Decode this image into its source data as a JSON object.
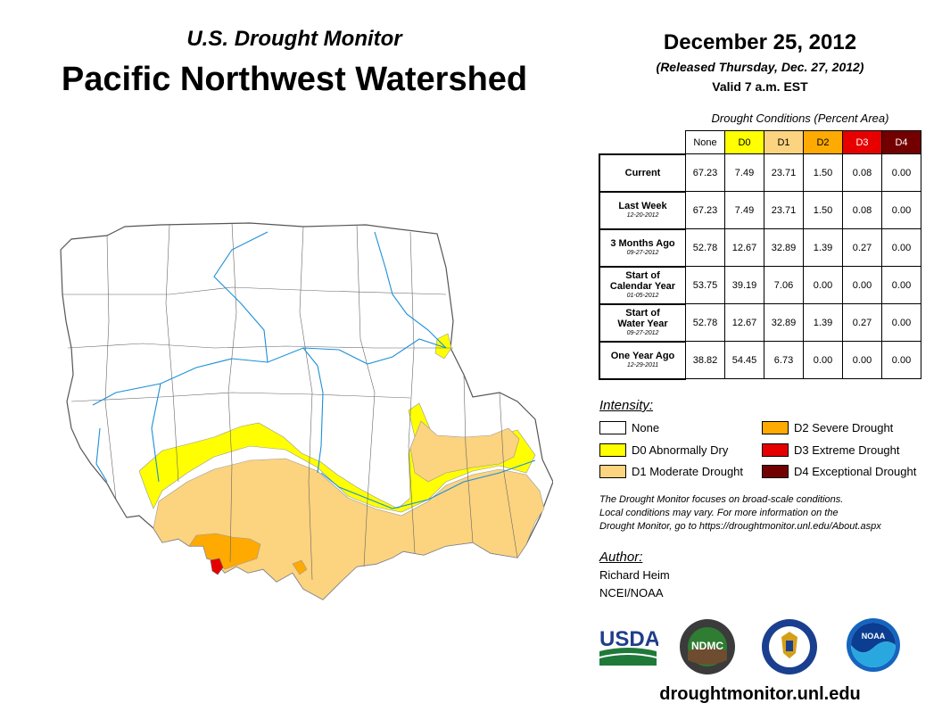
{
  "header": {
    "subtitle": "U.S. Drought Monitor",
    "title": "Pacific Northwest Watershed",
    "date": "December 25, 2012",
    "released": "(Released Thursday, Dec. 27, 2012)",
    "valid": "Valid 7 a.m. EST"
  },
  "table": {
    "caption": "Drought Conditions (Percent Area)",
    "columns": [
      "None",
      "D0",
      "D1",
      "D2",
      "D3",
      "D4"
    ],
    "rows": [
      {
        "label": "Current",
        "label2": "",
        "date": "",
        "values": [
          "67.23",
          "7.49",
          "23.71",
          "1.50",
          "0.08",
          "0.00"
        ]
      },
      {
        "label": "Last Week",
        "label2": "",
        "date": "12-20-2012",
        "values": [
          "67.23",
          "7.49",
          "23.71",
          "1.50",
          "0.08",
          "0.00"
        ]
      },
      {
        "label": "3 Months Ago",
        "label2": "",
        "date": "09-27-2012",
        "values": [
          "52.78",
          "12.67",
          "32.89",
          "1.39",
          "0.27",
          "0.00"
        ]
      },
      {
        "label": "Start of",
        "label2": "Calendar Year",
        "date": "01-05-2012",
        "values": [
          "53.75",
          "39.19",
          "7.06",
          "0.00",
          "0.00",
          "0.00"
        ]
      },
      {
        "label": "Start of",
        "label2": "Water Year",
        "date": "09-27-2012",
        "values": [
          "52.78",
          "12.67",
          "32.89",
          "1.39",
          "0.27",
          "0.00"
        ]
      },
      {
        "label": "One Year Ago",
        "label2": "",
        "date": "12-29-2011",
        "values": [
          "38.82",
          "54.45",
          "6.73",
          "0.00",
          "0.00",
          "0.00"
        ]
      }
    ]
  },
  "legend": {
    "heading": "Intensity:",
    "items": [
      {
        "label": "None",
        "color": "#ffffff"
      },
      {
        "label": "D0 Abnormally Dry",
        "color": "#ffff00"
      },
      {
        "label": "D1 Moderate Drought",
        "color": "#fcd37f"
      },
      {
        "label": "D2 Severe Drought",
        "color": "#ffaa00"
      },
      {
        "label": "D3 Extreme Drought",
        "color": "#e60000"
      },
      {
        "label": "D4 Exceptional Drought",
        "color": "#730000"
      }
    ]
  },
  "note": {
    "line1": "The Drought Monitor focuses on broad-scale conditions.",
    "line2": "Local conditions may vary. For more information on the",
    "line3": "Drought Monitor, go to https://droughtmonitor.unl.edu/About.aspx"
  },
  "author": {
    "heading": "Author:",
    "name": "Richard Heim",
    "org": "NCEI/NOAA"
  },
  "logos": {
    "usda": "USDA",
    "ndmc": "NDMC",
    "noaa": "NOAA"
  },
  "website": "droughtmonitor.unl.edu"
}
